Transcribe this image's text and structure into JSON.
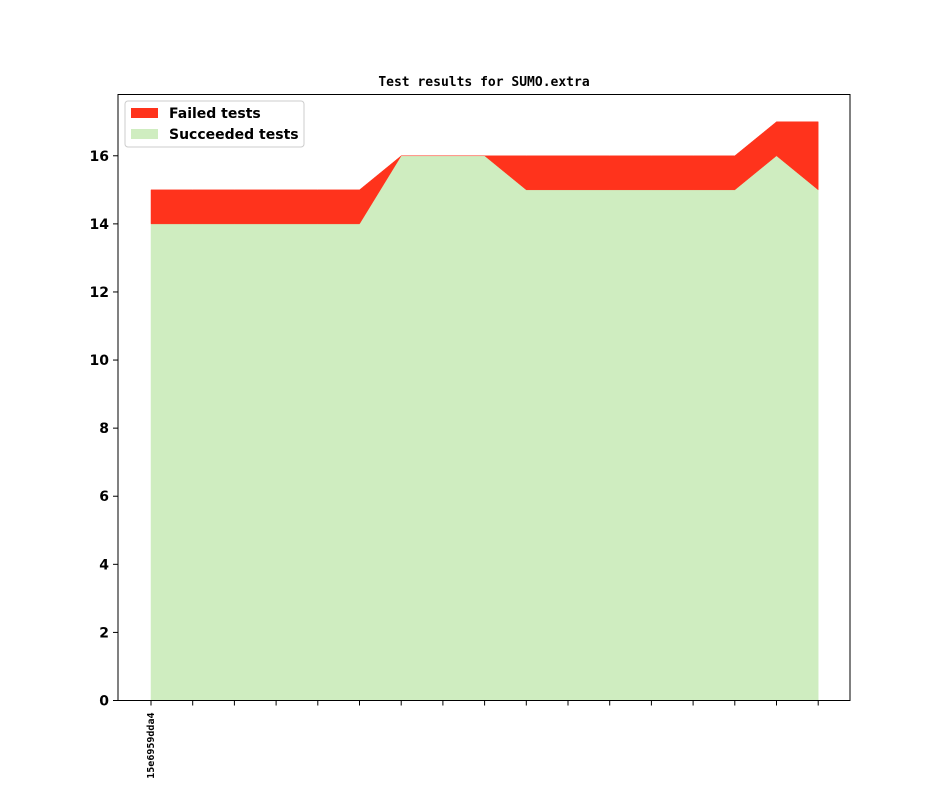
{
  "chart_data": {
    "type": "area",
    "title": "Test results for SUMO.extra",
    "xlabel": "",
    "ylabel": "",
    "x_tick_labels": [
      "15e6959dda4"
    ],
    "x_count": 17,
    "ylim": [
      0,
      17.8
    ],
    "yticks": [
      0,
      2,
      4,
      6,
      8,
      10,
      12,
      14,
      16
    ],
    "stacked": true,
    "grid": false,
    "legend_position": "upper left",
    "series": [
      {
        "name": "Succeeded tests",
        "color": "#cfedc0",
        "values": [
          14,
          14,
          14,
          14,
          14,
          14,
          16,
          16,
          16,
          15,
          15,
          15,
          15,
          15,
          15,
          16,
          15
        ]
      },
      {
        "name": "Failed tests",
        "color": "#ff331c",
        "values": [
          1,
          1,
          1,
          1,
          1,
          1,
          0,
          0,
          0,
          1,
          1,
          1,
          1,
          1,
          1,
          1,
          2
        ]
      }
    ]
  }
}
